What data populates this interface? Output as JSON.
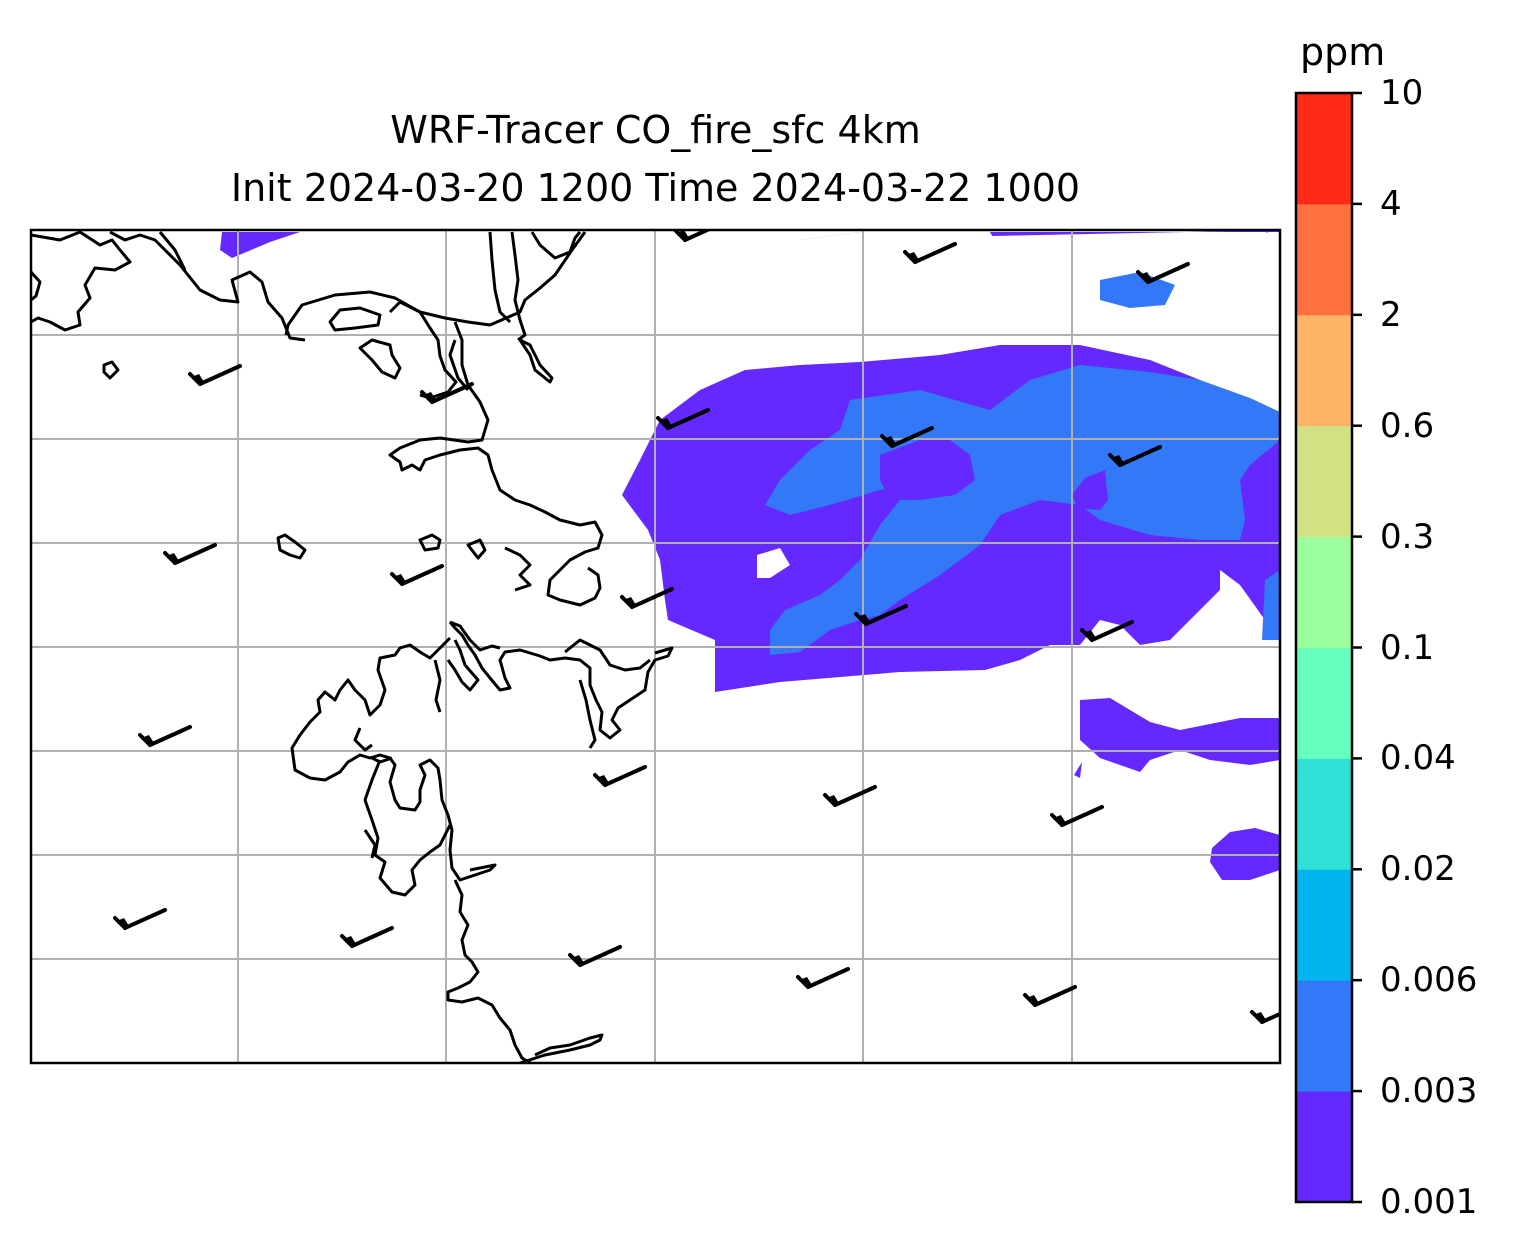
{
  "title": {
    "line1": "WRF-Tracer CO_fire_sfc 4km",
    "line2": "Init 2024-03-20 1200 Time 2024-03-22 1000"
  },
  "colorbar": {
    "unit": "ppm",
    "levels": [
      "0.001",
      "0.003",
      "0.006",
      "0.02",
      "0.04",
      "0.1",
      "0.3",
      "0.6",
      "2",
      "4",
      "10"
    ],
    "colors": [
      "#6528ff",
      "#3378f6",
      "#00b4ee",
      "#2fe0d6",
      "#67ffbd",
      "#9bff9e",
      "#d1e285",
      "#feb466",
      "#ff713f",
      "#ff2a18"
    ]
  },
  "map": {
    "fill_colors": {
      "band1": "#6528ff",
      "band2": "#3378f6"
    },
    "coastline_color": "#000000",
    "gridline_color": "#b0b0b0",
    "wind_barbs": "black"
  }
}
